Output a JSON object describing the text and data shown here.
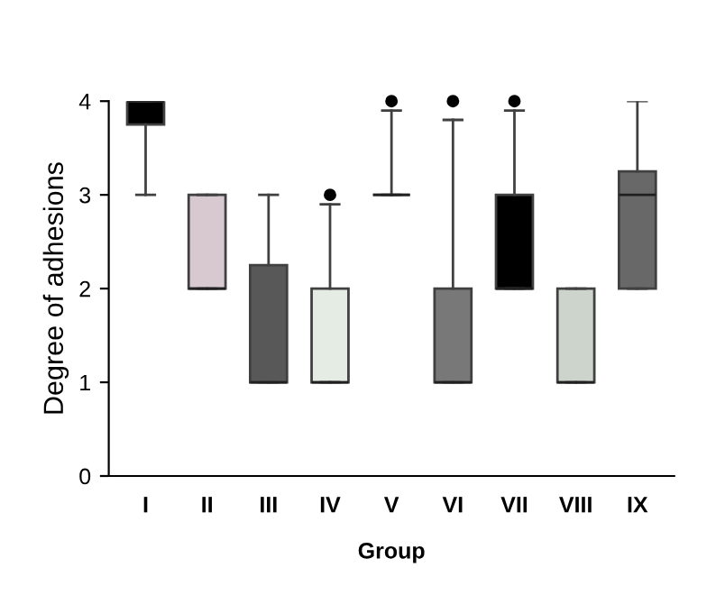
{
  "chart_data": {
    "type": "box",
    "xlabel": "Group",
    "ylabel": "Degree of adhesions",
    "categories": [
      "I",
      "II",
      "III",
      "IV",
      "V",
      "VI",
      "VII",
      "VIII",
      "IX"
    ],
    "colors": [
      "#000000",
      "#d8c8d0",
      "#585858",
      "#e4ece4",
      "#404040",
      "#787878",
      "#000000",
      "#ccd4cc",
      "#686868"
    ],
    "boxes": [
      {
        "low": 3,
        "q1": 3.75,
        "median": 4,
        "q3": 4,
        "high": 4
      },
      {
        "low": 2,
        "q1": 2,
        "median": 2,
        "q3": 3,
        "high": 3
      },
      {
        "low": 1,
        "q1": 1,
        "median": 1,
        "q3": 2.25,
        "high": 3
      },
      {
        "low": 1,
        "q1": 1,
        "median": 1,
        "q3": 2,
        "high": 2.9,
        "outliers": [
          3
        ]
      },
      {
        "low": 3,
        "q1": 3,
        "median": 3,
        "q3": 3,
        "high": 3.9,
        "outliers": [
          4
        ]
      },
      {
        "low": 1,
        "q1": 1,
        "median": 1,
        "q3": 2,
        "high": 3.8,
        "outliers": [
          4
        ]
      },
      {
        "low": 2,
        "q1": 2,
        "median": 2,
        "q3": 3,
        "high": 3.9,
        "outliers": [
          4
        ]
      },
      {
        "low": 1,
        "q1": 1,
        "median": 1,
        "q3": 2,
        "high": 2
      },
      {
        "low": 2,
        "q1": 2,
        "median": 3,
        "q3": 3.25,
        "high": 4
      }
    ],
    "ylim": [
      0,
      4
    ],
    "yticks": [
      0,
      1,
      2,
      3,
      4
    ],
    "grid": false
  }
}
